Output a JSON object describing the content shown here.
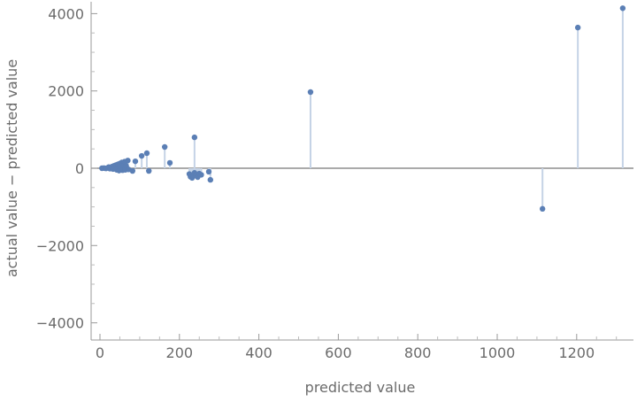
{
  "chart_data": {
    "type": "scatter",
    "style": "residual stem plot",
    "xlabel": "predicted value",
    "ylabel": "actual value − predicted value",
    "xlim": [
      -10,
      1340
    ],
    "ylim": [
      -4300,
      4300
    ],
    "xticks": [
      0,
      200,
      400,
      600,
      800,
      1000,
      1200
    ],
    "yticks": [
      -4000,
      -2000,
      0,
      2000,
      4000
    ],
    "ytick_labels": [
      "−4000",
      "−2000",
      "0",
      "2000",
      "4000"
    ],
    "point_color": "#5b7fb5",
    "stem_color": "#c5d3e6",
    "points": [
      [
        5,
        0
      ],
      [
        10,
        5
      ],
      [
        15,
        -5
      ],
      [
        20,
        10
      ],
      [
        22,
        30
      ],
      [
        25,
        -10
      ],
      [
        28,
        20
      ],
      [
        30,
        40
      ],
      [
        33,
        -20
      ],
      [
        35,
        60
      ],
      [
        38,
        10
      ],
      [
        40,
        80
      ],
      [
        42,
        -40
      ],
      [
        45,
        100
      ],
      [
        48,
        -60
      ],
      [
        50,
        120
      ],
      [
        52,
        30
      ],
      [
        55,
        150
      ],
      [
        57,
        -50
      ],
      [
        60,
        80
      ],
      [
        62,
        170
      ],
      [
        64,
        -40
      ],
      [
        66,
        60
      ],
      [
        70,
        200
      ],
      [
        72,
        -30
      ],
      [
        82,
        -70
      ],
      [
        89,
        180
      ],
      [
        105,
        320
      ],
      [
        118,
        390
      ],
      [
        123,
        -70
      ],
      [
        163,
        550
      ],
      [
        176,
        140
      ],
      [
        238,
        800
      ],
      [
        225,
        -150
      ],
      [
        228,
        -220
      ],
      [
        232,
        -250
      ],
      [
        235,
        -200
      ],
      [
        238,
        -120
      ],
      [
        242,
        -180
      ],
      [
        246,
        -230
      ],
      [
        250,
        -140
      ],
      [
        255,
        -170
      ],
      [
        274,
        -90
      ],
      [
        278,
        -300
      ],
      [
        530,
        1970
      ],
      [
        1114,
        -1050
      ],
      [
        1203,
        3640
      ],
      [
        1316,
        4140
      ]
    ]
  }
}
